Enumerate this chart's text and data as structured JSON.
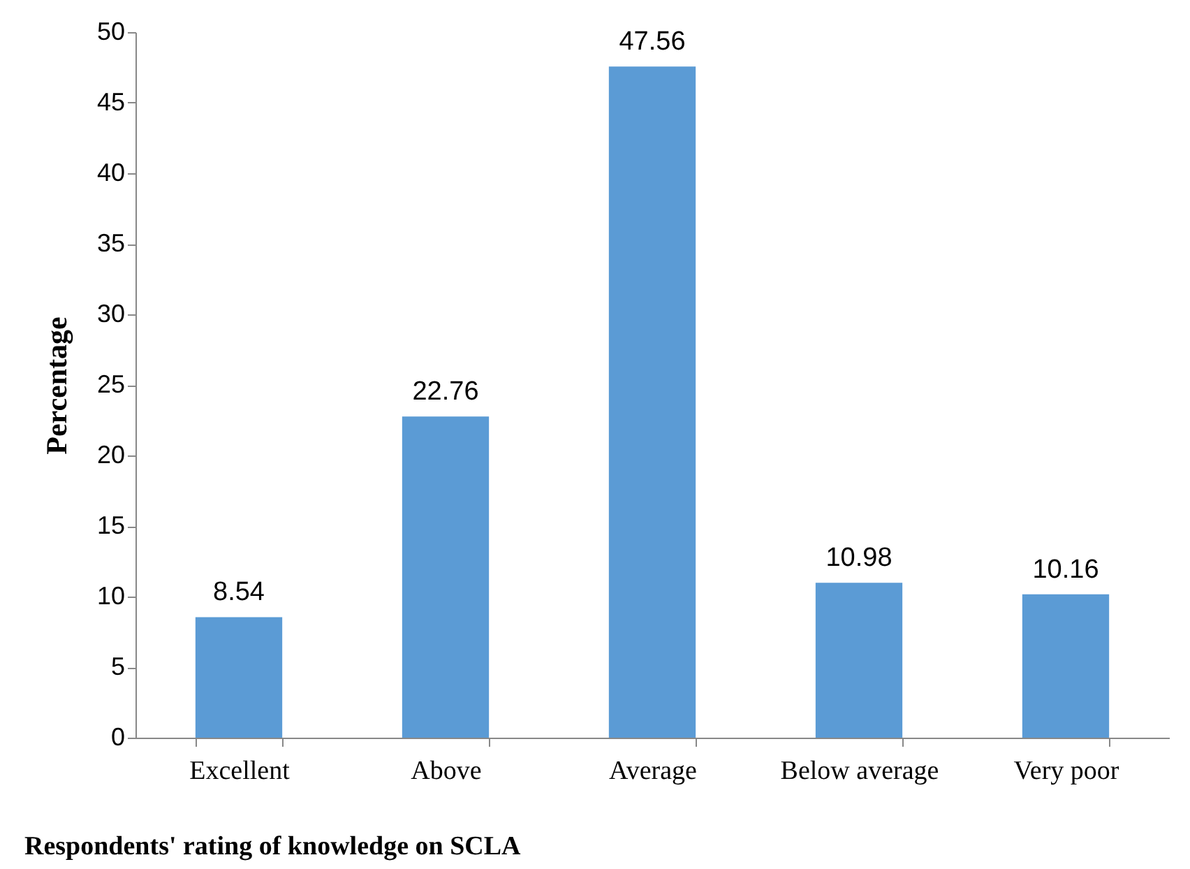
{
  "chart_data": {
    "type": "bar",
    "xlabel": "Respondents' rating of knowledge on SCLA",
    "ylabel": "Percentage",
    "categories": [
      "Excellent",
      "Above",
      "Average",
      "Below average",
      "Very poor"
    ],
    "values": [
      8.54,
      22.76,
      47.56,
      10.98,
      10.16
    ],
    "color": "#5b9bd5",
    "ylim": [
      0,
      50
    ],
    "yticks": [
      0,
      5,
      10,
      15,
      20,
      25,
      30,
      35,
      40,
      45,
      50
    ],
    "data_labels": true
  }
}
